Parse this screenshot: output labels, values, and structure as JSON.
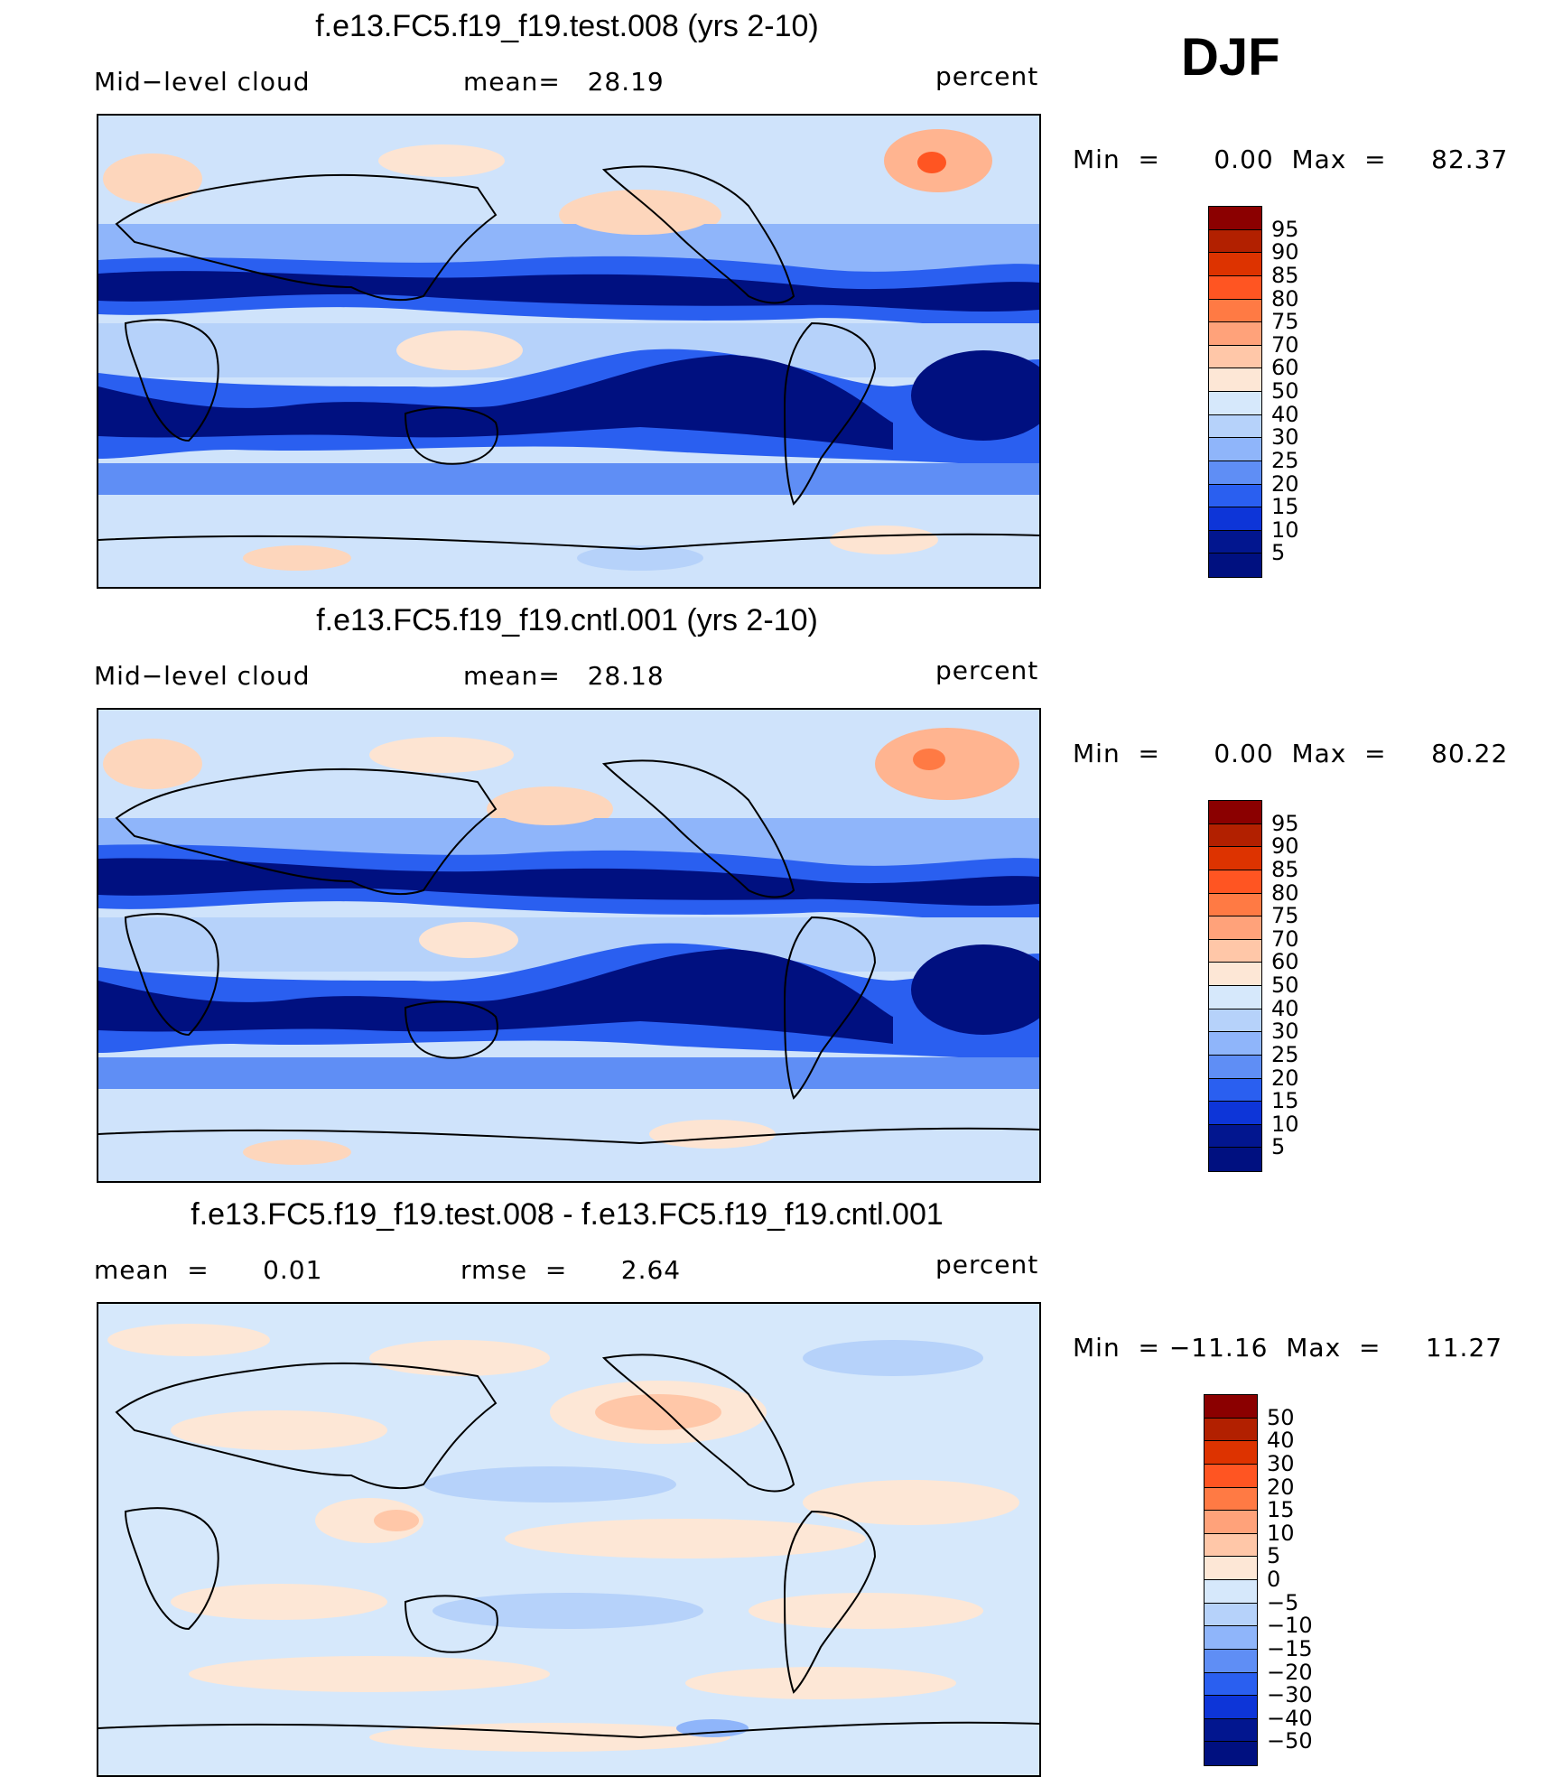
{
  "season": "DJF",
  "panels": [
    {
      "title": "f.e13.FC5.f19_f19.test.008 (yrs 2-10)",
      "left_label": "Mid−level cloud",
      "mid_label": "mean=   28.19",
      "right_label": "percent",
      "minmax": "Min  =      0.00  Max  =     82.37",
      "kind": "field",
      "legend": [
        "95",
        "90",
        "85",
        "80",
        "75",
        "70",
        "60",
        "50",
        "40",
        "30",
        "25",
        "20",
        "15",
        "10",
        "5"
      ]
    },
    {
      "title": "f.e13.FC5.f19_f19.cntl.001 (yrs 2-10)",
      "left_label": "Mid−level cloud",
      "mid_label": "mean=   28.18",
      "right_label": "percent",
      "minmax": "Min  =      0.00  Max  =     80.22",
      "kind": "field",
      "legend": [
        "95",
        "90",
        "85",
        "80",
        "75",
        "70",
        "60",
        "50",
        "40",
        "30",
        "25",
        "20",
        "15",
        "10",
        "5"
      ]
    },
    {
      "title": "f.e13.FC5.f19_f19.test.008 - f.e13.FC5.f19_f19.cntl.001",
      "left_label": "mean  =      0.01",
      "mid_label": "rmse  =      2.64",
      "right_label": "percent",
      "minmax": "Min  = −11.16  Max  =     11.27",
      "kind": "diff",
      "legend": [
        "50",
        "40",
        "30",
        "20",
        "15",
        "10",
        "5",
        "0",
        "−5",
        "−10",
        "−15",
        "−20",
        "−30",
        "−40",
        "−50"
      ]
    }
  ],
  "colors": {
    "field_scale": [
      "#8b0000",
      "#b22000",
      "#dd3300",
      "#ff5522",
      "#ff7a44",
      "#ffa27a",
      "#ffc7a8",
      "#fde7d6",
      "#d6e8fb",
      "#b6d2fa",
      "#8fb5fa",
      "#5f8ef5",
      "#2a5ff0",
      "#0d35d8",
      "#02168f",
      "#001080"
    ],
    "diff_scale": [
      "#8b0000",
      "#b22000",
      "#dd3300",
      "#ff5522",
      "#ff7a44",
      "#ffa27a",
      "#ffc7a8",
      "#fde7d6",
      "#d6e8fb",
      "#b6d2fa",
      "#8fb5fa",
      "#5f8ef5",
      "#2a5ff0",
      "#0d35d8",
      "#02168f",
      "#001080"
    ]
  }
}
